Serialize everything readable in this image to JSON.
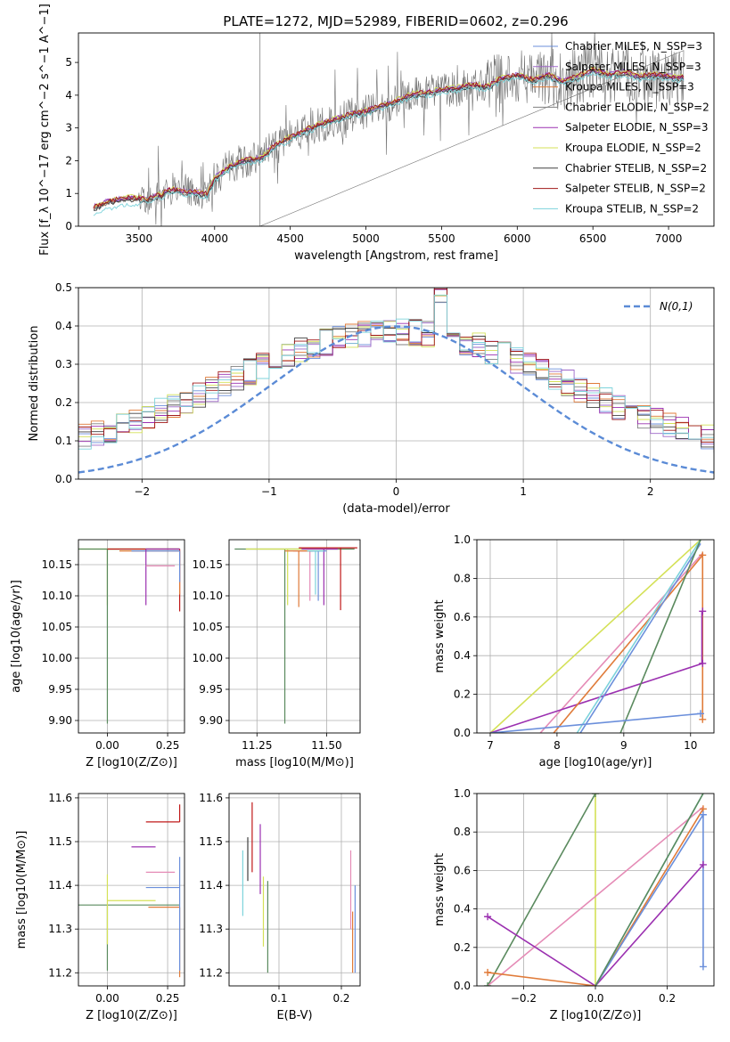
{
  "figure": {
    "title": "PLATE=1272, MJD=52989, FIBERID=0602, z=0.296"
  },
  "palette": {
    "chabrier_miles": "#6b8fdb",
    "salpeter_miles": "#9d67c8",
    "kroupa_miles": "#e07b39",
    "chabrier_elodie": "#808080",
    "salpeter_elodie": "#9b30b0",
    "kroupa_elodie": "#d4e157",
    "chabrier_stelib": "#404040",
    "salpeter_stelib": "#a01818",
    "kroupa_stelib": "#7dd3db",
    "normal_curve": "#5b8bd6",
    "pink": "#e58bb6",
    "green": "#5a8a5e",
    "orange": "#e07b39",
    "purple": "#9b30b0",
    "lime": "#d4e157",
    "teal": "#7dd3db",
    "blue": "#6b8fdb",
    "red": "#c01818"
  },
  "chart_data": [
    {
      "id": "spectrum",
      "type": "line",
      "xlabel": "wavelength [Angstrom, rest frame]",
      "ylabel": "Flux [f_λ 10^−17 erg cm^−2 s^−1 A^−1]",
      "xlim": [
        3100,
        7300
      ],
      "ylim": [
        0,
        5.9
      ],
      "xticks": [
        3500,
        4000,
        4500,
        5000,
        5500,
        6000,
        6500,
        7000
      ],
      "yticks": [
        0,
        1,
        2,
        3,
        4,
        5
      ],
      "grid": false,
      "legend_position": "top-right",
      "data_range": [
        3200,
        7100
      ],
      "continuum": [
        [
          3200,
          0.55
        ],
        [
          3300,
          0.75
        ],
        [
          3450,
          0.85
        ],
        [
          3550,
          0.8
        ],
        [
          3650,
          0.95
        ],
        [
          3700,
          1.1
        ],
        [
          3800,
          1.05
        ],
        [
          3900,
          1.0
        ],
        [
          3950,
          0.95
        ],
        [
          4000,
          1.45
        ],
        [
          4100,
          1.8
        ],
        [
          4200,
          2.0
        ],
        [
          4300,
          2.05
        ],
        [
          4400,
          2.45
        ],
        [
          4500,
          2.7
        ],
        [
          4600,
          2.9
        ],
        [
          4700,
          3.1
        ],
        [
          4800,
          3.25
        ],
        [
          4900,
          3.4
        ],
        [
          5000,
          3.5
        ],
        [
          5100,
          3.65
        ],
        [
          5200,
          3.8
        ],
        [
          5300,
          4.0
        ],
        [
          5400,
          4.05
        ],
        [
          5500,
          4.15
        ],
        [
          5600,
          4.2
        ],
        [
          5700,
          4.3
        ],
        [
          5800,
          4.25
        ],
        [
          5900,
          4.5
        ],
        [
          6000,
          4.6
        ],
        [
          6100,
          4.45
        ],
        [
          6200,
          4.6
        ],
        [
          6300,
          4.4
        ],
        [
          6400,
          4.55
        ],
        [
          6500,
          4.75
        ],
        [
          6600,
          4.6
        ],
        [
          6700,
          4.7
        ],
        [
          6800,
          4.55
        ],
        [
          6900,
          4.6
        ],
        [
          7000,
          4.55
        ],
        [
          7100,
          4.5
        ]
      ],
      "series": [
        {
          "name": "Chabrier MILES, N_SSP=3"
        },
        {
          "name": "Salpeter MILES, N_SSP=3"
        },
        {
          "name": "Kroupa MILES, N_SSP=3"
        },
        {
          "name": "Chabrier ELODIE, N_SSP=2"
        },
        {
          "name": "Salpeter ELODIE, N_SSP=3"
        },
        {
          "name": "Kroupa ELODIE, N_SSP=2"
        },
        {
          "name": "Chabrier STELIB, N_SSP=2"
        },
        {
          "name": "Salpeter STELIB, N_SSP=2"
        },
        {
          "name": "Kroupa STELIB, N_SSP=2"
        }
      ]
    },
    {
      "id": "residuals",
      "type": "line",
      "xlabel": "(data-model)/error",
      "ylabel": "Normed distribution",
      "xlim": [
        -2.5,
        2.5
      ],
      "ylim": [
        0,
        0.5
      ],
      "xticks": [
        -2,
        -1,
        0,
        1,
        2
      ],
      "yticks": [
        0.0,
        0.1,
        0.2,
        0.3,
        0.4,
        0.5
      ],
      "grid": true,
      "legend_position": "top-right",
      "legend": "N(0,1)",
      "bin_width": 0.1
    },
    {
      "id": "age_vs_Z",
      "type": "scatter",
      "xlabel": "Z [log10(Z/Z⊙)]",
      "ylabel": "age [log10(age/yr)]",
      "xlim": [
        -0.12,
        0.32
      ],
      "ylim": [
        9.88,
        10.19
      ],
      "xticks": [
        0.0,
        0.25
      ],
      "yticks": [
        9.9,
        9.95,
        10.0,
        10.05,
        10.1,
        10.15
      ],
      "grid": true,
      "points": [
        {
          "x": 0.0,
          "y": 10.175,
          "xerr": [
            0.12,
            0.3
          ],
          "yerr": [
            0.09,
            0.0
          ],
          "color": "lime"
        },
        {
          "x": 0.0,
          "y": 10.175,
          "xerr": [
            0.12,
            0.3
          ],
          "yerr": [
            0.28,
            0.0
          ],
          "color": "green"
        },
        {
          "x": 0.3,
          "y": 10.175,
          "xerr": [
            0.3,
            0.0
          ],
          "yerr": [
            0.1,
            0.0
          ],
          "color": "red"
        },
        {
          "x": 0.3,
          "y": 10.172,
          "xerr": [
            0.25,
            0.0
          ],
          "yerr": [
            0.07,
            0.0
          ],
          "color": "orange"
        },
        {
          "x": 0.3,
          "y": 10.172,
          "xerr": [
            0.2,
            0.0
          ],
          "yerr": [
            0.05,
            0.0
          ],
          "color": "blue"
        },
        {
          "x": 0.16,
          "y": 10.175,
          "xerr": [
            0.0,
            0.14
          ],
          "yerr": [
            0.09,
            0.0
          ],
          "color": "purple"
        },
        {
          "x": 0.16,
          "y": 10.148,
          "xerr": [
            0.0,
            0.12
          ],
          "yerr": [
            0.0,
            0.0
          ],
          "color": "pink"
        }
      ]
    },
    {
      "id": "age_vs_mass",
      "type": "scatter",
      "xlabel": "mass [log10(M/M⊙)]",
      "ylabel": "",
      "xlim": [
        11.15,
        11.62
      ],
      "ylim": [
        9.88,
        10.19
      ],
      "xticks": [
        11.25,
        11.5
      ],
      "yticks": [
        9.9,
        9.95,
        10.0,
        10.05,
        10.1,
        10.15
      ],
      "grid": true,
      "points": [
        {
          "x": 11.35,
          "y": 10.175,
          "xerr": [
            0.18,
            0.25
          ],
          "yerr": [
            0.28,
            0.0
          ],
          "color": "green"
        },
        {
          "x": 11.36,
          "y": 10.175,
          "xerr": [
            0.15,
            0.15
          ],
          "yerr": [
            0.09,
            0.0
          ],
          "color": "lime"
        },
        {
          "x": 11.55,
          "y": 10.177,
          "xerr": [
            0.15,
            0.06
          ],
          "yerr": [
            0.1,
            0.0
          ],
          "color": "red"
        },
        {
          "x": 11.49,
          "y": 10.175,
          "xerr": [
            0.08,
            0.05
          ],
          "yerr": [
            0.09,
            0.0
          ],
          "color": "purple"
        },
        {
          "x": 11.44,
          "y": 10.172,
          "xerr": [
            0.06,
            0.04
          ],
          "yerr": [
            0.08,
            0.0
          ],
          "color": "pink"
        },
        {
          "x": 11.4,
          "y": 10.172,
          "xerr": [
            0.05,
            0.05
          ],
          "yerr": [
            0.09,
            0.0
          ],
          "color": "orange"
        },
        {
          "x": 11.47,
          "y": 10.172,
          "xerr": [
            0.03,
            0.03
          ],
          "yerr": [
            0.08,
            0.0
          ],
          "color": "blue"
        },
        {
          "x": 11.46,
          "y": 10.172,
          "xerr": [
            0.03,
            0.03
          ],
          "yerr": [
            0.07,
            0.0
          ],
          "color": "teal"
        }
      ]
    },
    {
      "id": "weight_vs_age",
      "type": "line",
      "xlabel": "age  [log10(age/yr)]",
      "ylabel": "mass weight",
      "xlim": [
        6.8,
        10.35
      ],
      "ylim": [
        0,
        1
      ],
      "xticks": [
        7,
        8,
        9,
        10
      ],
      "yticks": [
        0.0,
        0.2,
        0.4,
        0.6,
        0.8,
        1.0
      ],
      "grid": true,
      "series": [
        {
          "color": "lime",
          "points": [
            [
              7.0,
              0.0
            ],
            [
              10.15,
              1.0
            ]
          ]
        },
        {
          "color": "pink",
          "points": [
            [
              7.75,
              0.0
            ],
            [
              10.18,
              0.93
            ]
          ]
        },
        {
          "color": "purple",
          "points": [
            [
              7.0,
              0.0
            ],
            [
              10.18,
              0.36
            ]
          ]
        },
        {
          "color": "orange",
          "points": [
            [
              7.95,
              0.0
            ],
            [
              10.18,
              0.92
            ]
          ]
        },
        {
          "color": "teal",
          "points": [
            [
              8.3,
              0.0
            ],
            [
              10.15,
              1.0
            ]
          ]
        },
        {
          "color": "blue",
          "points": [
            [
              8.35,
              0.0
            ],
            [
              10.15,
              0.98
            ]
          ]
        },
        {
          "color": "green",
          "points": [
            [
              8.95,
              0.0
            ],
            [
              10.15,
              1.0
            ]
          ]
        },
        {
          "color": "blue",
          "points": [
            [
              7.0,
              0.0
            ],
            [
              10.15,
              0.1
            ]
          ]
        }
      ],
      "markers": [
        {
          "color": "orange",
          "x": 10.18,
          "y": 0.07
        },
        {
          "color": "orange",
          "x": 10.18,
          "y": 0.92
        },
        {
          "color": "purple",
          "x": 10.18,
          "y": 0.63
        },
        {
          "color": "purple",
          "x": 10.18,
          "y": 0.36
        },
        {
          "color": "blue",
          "x": 10.15,
          "y": 0.1
        }
      ],
      "vlines": [
        {
          "color": "orange",
          "x": 10.18,
          "y": [
            0.07,
            0.93
          ]
        },
        {
          "color": "purple",
          "x": 10.17,
          "y": [
            0.36,
            0.63
          ]
        }
      ]
    },
    {
      "id": "mass_vs_Z",
      "type": "scatter",
      "xlabel": "Z [log10(Z/Z⊙)]",
      "ylabel": "mass [log10(M/M⊙)]",
      "xlim": [
        -0.12,
        0.32
      ],
      "ylim": [
        11.17,
        11.61
      ],
      "xticks": [
        0.0,
        0.25
      ],
      "yticks": [
        11.2,
        11.3,
        11.4,
        11.5,
        11.6
      ],
      "grid": true,
      "points": [
        {
          "x": 0.0,
          "y": 11.355,
          "xerr": [
            0.12,
            0.3
          ],
          "yerr": [
            0.15,
            0.0
          ],
          "color": "green"
        },
        {
          "x": 0.0,
          "y": 11.365,
          "xerr": [
            0.0,
            0.2
          ],
          "yerr": [
            0.1,
            0.06
          ],
          "color": "lime"
        },
        {
          "x": 0.3,
          "y": 11.545,
          "xerr": [
            0.14,
            0.0
          ],
          "yerr": [
            0.0,
            0.04
          ],
          "color": "red"
        },
        {
          "x": 0.3,
          "y": 11.35,
          "xerr": [
            0.13,
            0.0
          ],
          "yerr": [
            0.16,
            0.0
          ],
          "color": "orange"
        },
        {
          "x": 0.3,
          "y": 11.395,
          "xerr": [
            0.14,
            0.0
          ],
          "yerr": [
            0.19,
            0.07
          ],
          "color": "blue"
        },
        {
          "x": 0.1,
          "y": 11.488,
          "xerr": [
            0.0,
            0.1
          ],
          "yerr": [
            0.0,
            0.0
          ],
          "color": "purple"
        },
        {
          "x": 0.16,
          "y": 11.43,
          "xerr": [
            0.0,
            0.12
          ],
          "yerr": [
            0.0,
            0.0
          ],
          "color": "pink"
        }
      ]
    },
    {
      "id": "mass_vs_EBV",
      "type": "scatter",
      "xlabel": "E(B-V)",
      "ylabel": "",
      "xlim": [
        0.02,
        0.23
      ],
      "ylim": [
        11.17,
        11.61
      ],
      "xticks": [
        0.1,
        0.2
      ],
      "yticks": [
        11.2,
        11.3,
        11.4,
        11.5,
        11.6
      ],
      "grid": true,
      "vsegments": [
        {
          "x": 0.042,
          "y": [
            11.33,
            11.48
          ],
          "color": "teal"
        },
        {
          "x": 0.05,
          "y": [
            11.41,
            11.51
          ],
          "color": "chabrier_stelib"
        },
        {
          "x": 0.057,
          "y": [
            11.43,
            11.59
          ],
          "color": "red"
        },
        {
          "x": 0.07,
          "y": [
            11.38,
            11.54
          ],
          "color": "purple"
        },
        {
          "x": 0.075,
          "y": [
            11.26,
            11.42
          ],
          "color": "lime"
        },
        {
          "x": 0.082,
          "y": [
            11.2,
            11.41
          ],
          "color": "green"
        },
        {
          "x": 0.215,
          "y": [
            11.3,
            11.48
          ],
          "color": "pink"
        },
        {
          "x": 0.218,
          "y": [
            11.2,
            11.34
          ],
          "color": "orange"
        },
        {
          "x": 0.222,
          "y": [
            11.2,
            11.4
          ],
          "color": "blue"
        }
      ]
    },
    {
      "id": "weight_vs_Z",
      "type": "line",
      "xlabel": "Z [log10(Z/Z⊙)]",
      "ylabel": "mass weight",
      "xlim": [
        -0.33,
        0.33
      ],
      "ylim": [
        0,
        1
      ],
      "xticks": [
        -0.2,
        0.0,
        0.2
      ],
      "yticks": [
        0.0,
        0.2,
        0.4,
        0.6,
        0.8,
        1.0
      ],
      "grid": true,
      "series": [
        {
          "color": "green",
          "points": [
            [
              -0.3,
              0.0
            ],
            [
              0.0,
              1.0
            ]
          ]
        },
        {
          "color": "lime",
          "points": [
            [
              0.0,
              0.0
            ],
            [
              0.0,
              1.0
            ]
          ]
        },
        {
          "color": "pink",
          "points": [
            [
              -0.3,
              0.0
            ],
            [
              0.3,
              0.93
            ]
          ]
        },
        {
          "color": "purple",
          "points": [
            [
              -0.3,
              0.36
            ],
            [
              0.0,
              0.0
            ],
            [
              0.3,
              0.63
            ]
          ]
        },
        {
          "color": "orange",
          "points": [
            [
              -0.3,
              0.07
            ],
            [
              0.0,
              0.0
            ],
            [
              0.3,
              0.92
            ]
          ]
        },
        {
          "color": "teal",
          "points": [
            [
              0.0,
              0.0
            ],
            [
              0.3,
              1.0
            ]
          ]
        },
        {
          "color": "blue",
          "points": [
            [
              0.0,
              0.0
            ],
            [
              0.3,
              0.89
            ]
          ]
        },
        {
          "color": "green",
          "points": [
            [
              0.0,
              0.0
            ],
            [
              0.3,
              1.0
            ]
          ]
        }
      ],
      "markers": [
        {
          "color": "purple",
          "x": -0.3,
          "y": 0.36
        },
        {
          "color": "orange",
          "x": -0.3,
          "y": 0.07
        },
        {
          "color": "green",
          "x": -0.3,
          "y": 0.0
        },
        {
          "color": "orange",
          "x": 0.3,
          "y": 0.92
        },
        {
          "color": "blue",
          "x": 0.3,
          "y": 0.89
        },
        {
          "color": "purple",
          "x": 0.3,
          "y": 0.63
        },
        {
          "color": "blue",
          "x": 0.3,
          "y": 0.1
        },
        {
          "color": "green",
          "x": 0.0,
          "y": 1.0
        }
      ],
      "vlines": [
        {
          "color": "blue",
          "x": 0.3,
          "y": [
            0.1,
            0.89
          ]
        }
      ]
    }
  ]
}
